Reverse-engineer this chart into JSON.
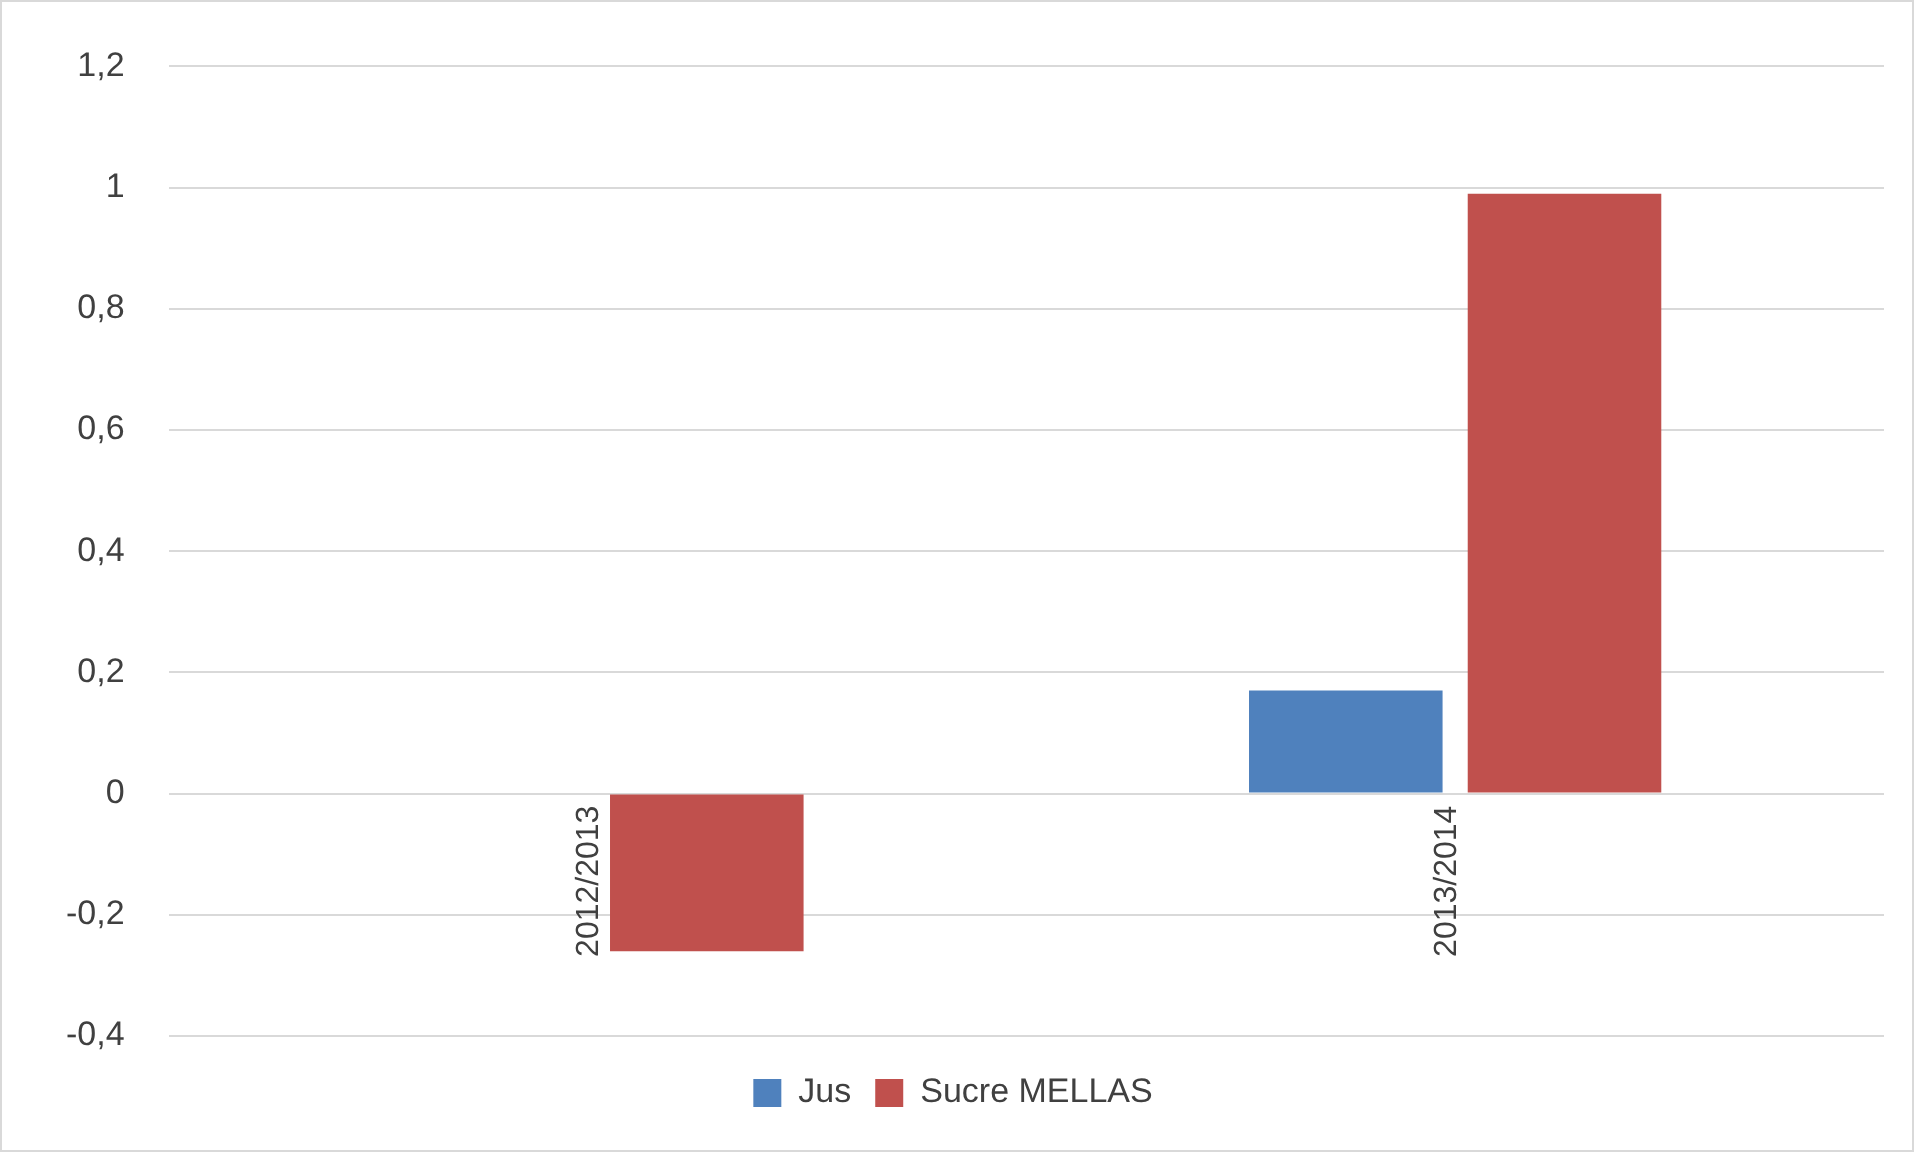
{
  "chart_data": {
    "type": "bar",
    "categories": [
      "2012/2013",
      "2013/2014"
    ],
    "series": [
      {
        "name": "Jus",
        "color": "#4f81bd",
        "values": [
          null,
          0.17
        ]
      },
      {
        "name": "Sucre MELLAS",
        "color": "#c0504d",
        "values": [
          -0.26,
          0.99
        ]
      }
    ],
    "ylim": [
      -0.4,
      1.2
    ],
    "yticks": [
      {
        "value": -0.4,
        "label": "-0,4"
      },
      {
        "value": -0.2,
        "label": "-0,2"
      },
      {
        "value": 0,
        "label": "0"
      },
      {
        "value": 0.2,
        "label": "0,2"
      },
      {
        "value": 0.4,
        "label": "0,4"
      },
      {
        "value": 0.6,
        "label": "0,6"
      },
      {
        "value": 0.8,
        "label": "0,8"
      },
      {
        "value": 1,
        "label": "1"
      },
      {
        "value": 1.2,
        "label": "1,2"
      }
    ],
    "grid": "y",
    "legend": "bottom"
  }
}
